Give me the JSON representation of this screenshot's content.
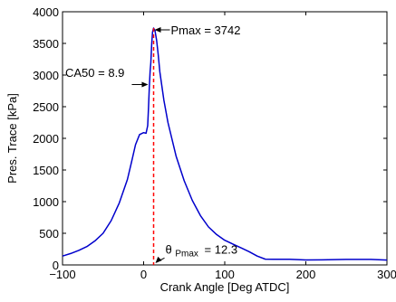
{
  "chart_data": {
    "type": "line",
    "title": "",
    "xlabel": "Crank Angle [Deg ATDC]",
    "ylabel": "Pres. Trace [kPa]",
    "xlim": [
      -100,
      300
    ],
    "ylim": [
      0,
      4000
    ],
    "xticks": [
      -100,
      0,
      100,
      200,
      300
    ],
    "yticks": [
      0,
      500,
      1000,
      1500,
      2000,
      2500,
      3000,
      3500,
      4000
    ],
    "xtick_labels": [
      "−100",
      "0",
      "100",
      "200",
      "300"
    ],
    "ytick_labels": [
      "0",
      "500",
      "1000",
      "1500",
      "2000",
      "2500",
      "3000",
      "3500",
      "4000"
    ],
    "grid": false,
    "colors": {
      "trace": "#0000cc",
      "marker": "#ff0000"
    },
    "series": [
      {
        "x": [
          -100,
          -90,
          -80,
          -70,
          -60,
          -50,
          -40,
          -30,
          -20,
          -15,
          -10,
          -5,
          0,
          3,
          5,
          6,
          7,
          8,
          8.9,
          10,
          11,
          12.3,
          14,
          16,
          18,
          20,
          25,
          30,
          40,
          50,
          60,
          70,
          80,
          90,
          100,
          110,
          120,
          130,
          140,
          150,
          160,
          180,
          200,
          220,
          250,
          280,
          300
        ],
        "y": [
          140,
          180,
          230,
          290,
          380,
          500,
          700,
          980,
          1350,
          1620,
          1900,
          2060,
          2090,
          2080,
          2200,
          2480,
          2800,
          3060,
          3200,
          3500,
          3680,
          3742,
          3700,
          3550,
          3320,
          3050,
          2600,
          2250,
          1720,
          1330,
          1020,
          780,
          600,
          480,
          390,
          330,
          270,
          210,
          140,
          95,
          90,
          85,
          85,
          82,
          85,
          82,
          80
        ]
      }
    ],
    "markers": [
      {
        "type": "vline",
        "x": 12.3,
        "style": "dashed"
      }
    ],
    "annotations": {
      "pmax": "Pmax = 3742",
      "ca50": "CA50 = 8.9",
      "theta_symbol": "θ",
      "theta_sub": "Pmax",
      "theta_value": "= 12.3"
    }
  }
}
